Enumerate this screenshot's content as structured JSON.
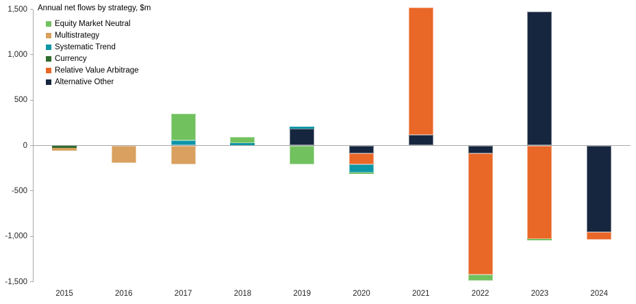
{
  "chart_data": {
    "type": "bar",
    "stacked": true,
    "title": "Annual net flows by strategy, $m",
    "unit": "$m",
    "categories": [
      "2015",
      "2016",
      "2017",
      "2018",
      "2019",
      "2020",
      "2021",
      "2022",
      "2023",
      "2024"
    ],
    "series": [
      {
        "name": "Equity Market Neutral",
        "color": "#71C15F",
        "values": [
          0,
          0,
          290,
          70,
          -210,
          -10,
          0,
          -70,
          -15,
          0
        ]
      },
      {
        "name": "Multistrategy",
        "color": "#D9A05F",
        "values": [
          -35,
          -190,
          -210,
          0,
          0,
          0,
          0,
          0,
          0,
          0
        ]
      },
      {
        "name": "Systematic Trend",
        "color": "#0D96A6",
        "values": [
          0,
          0,
          60,
          25,
          25,
          -90,
          0,
          0,
          0,
          0
        ]
      },
      {
        "name": "Currency",
        "color": "#2F6B2F",
        "values": [
          -25,
          0,
          0,
          0,
          0,
          0,
          0,
          0,
          0,
          0
        ]
      },
      {
        "name": "Relative Value Arbitrage",
        "color": "#E96727",
        "values": [
          0,
          0,
          0,
          0,
          0,
          -120,
          1400,
          -1330,
          -1030,
          -90
        ]
      },
      {
        "name": "Alternative Other",
        "color": "#16263E",
        "values": [
          0,
          0,
          0,
          0,
          185,
          -90,
          120,
          -90,
          1470,
          -950
        ]
      }
    ],
    "stack_order_from_zero": [
      "Alternative Other",
      "Relative Value Arbitrage",
      "Currency",
      "Systematic Trend",
      "Multistrategy",
      "Equity Market Neutral"
    ],
    "ylim": [
      -1500,
      1500
    ],
    "ytick_values": [
      1500,
      1000,
      500,
      0,
      -500,
      -1000,
      -1500
    ],
    "ytick_labels": [
      "1,500",
      "1,000",
      "500",
      "0",
      "-500",
      "-1,000",
      "-1,500"
    ],
    "grid": "zero-line-only",
    "legend_position": "top-left",
    "axis_color": "#A6A6A6",
    "text_color": "#262626",
    "background_color": "#FFFFFF"
  }
}
